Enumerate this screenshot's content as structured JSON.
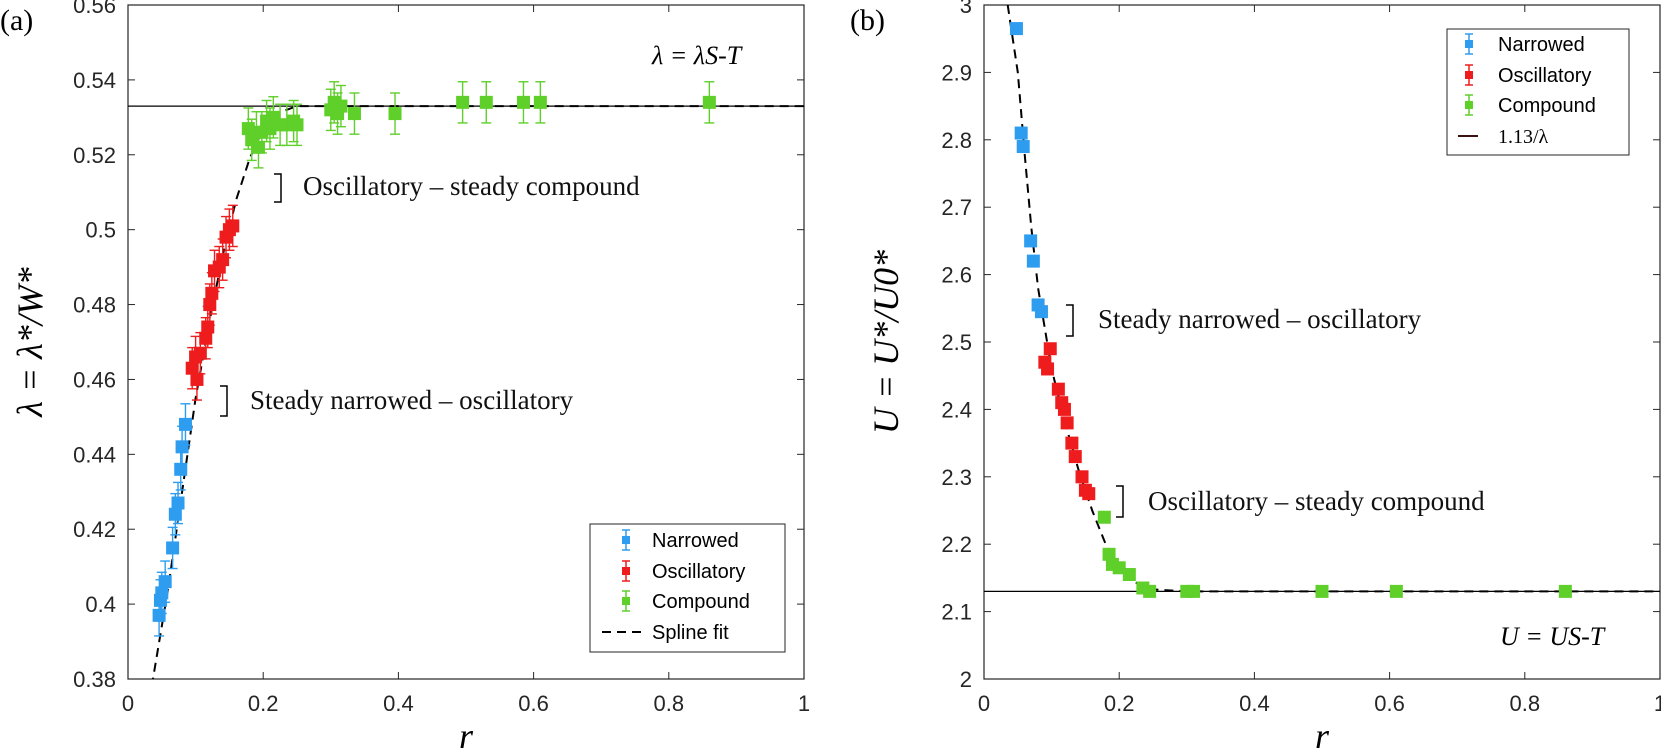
{
  "colors": {
    "narrowed": "#2e9df0",
    "oscillatory": "#ee1c1c",
    "compound": "#5fcf2a",
    "axis": "#262626",
    "ref_line": "#000000"
  },
  "panels": [
    {
      "label": "(a)",
      "ylabel": "λ = λ*/W*",
      "xlabel": "r",
      "ref_label": "λ = λS-T",
      "annotations": [
        "Oscillatory – steady compound",
        "Steady narrowed – oscillatory"
      ],
      "legend": [
        "Narrowed",
        "Oscillatory",
        "Compound",
        "Spline fit"
      ]
    },
    {
      "label": "(b)",
      "ylabel": "U = U*/U0*",
      "xlabel": "r",
      "ref_label": "U = US-T",
      "annotations": [
        "Steady narrowed – oscillatory",
        "Oscillatory – steady compound"
      ],
      "legend": [
        "Narrowed",
        "Oscillatory",
        "Compound",
        "1.13/λ"
      ]
    }
  ],
  "chart_data": [
    {
      "type": "scatter",
      "xlabel": "r",
      "ylabel": "λ = λ*/W*",
      "xlim": [
        0,
        1
      ],
      "ylim": [
        0.38,
        0.56
      ],
      "xticks": [
        "0",
        "0.2",
        "0.4",
        "0.6",
        "0.8",
        "1"
      ],
      "yticks": [
        "0.38",
        "0.4",
        "0.42",
        "0.44",
        "0.46",
        "0.48",
        "0.5",
        "0.52",
        "0.54",
        "0.56"
      ],
      "reference_line": {
        "y": 0.533,
        "label": "λ = λS-T"
      },
      "legend_position": "bottom-right",
      "series": [
        {
          "name": "Narrowed",
          "color": "#2e9df0",
          "points": [
            [
              0.046,
              0.397
            ],
            [
              0.048,
              0.401
            ],
            [
              0.05,
              0.403
            ],
            [
              0.055,
              0.406
            ],
            [
              0.066,
              0.415
            ],
            [
              0.07,
              0.424
            ],
            [
              0.074,
              0.427
            ],
            [
              0.078,
              0.436
            ],
            [
              0.08,
              0.442
            ],
            [
              0.085,
              0.448
            ]
          ]
        },
        {
          "name": "Oscillatory",
          "color": "#ee1c1c",
          "points": [
            [
              0.095,
              0.463
            ],
            [
              0.1,
              0.466
            ],
            [
              0.102,
              0.46
            ],
            [
              0.107,
              0.467
            ],
            [
              0.115,
              0.471
            ],
            [
              0.118,
              0.474
            ],
            [
              0.121,
              0.48
            ],
            [
              0.124,
              0.483
            ],
            [
              0.128,
              0.489
            ],
            [
              0.135,
              0.49
            ],
            [
              0.14,
              0.492
            ],
            [
              0.145,
              0.498
            ],
            [
              0.15,
              0.5
            ],
            [
              0.155,
              0.501
            ]
          ]
        },
        {
          "name": "Compound",
          "color": "#5fcf2a",
          "points": [
            [
              0.178,
              0.527
            ],
            [
              0.183,
              0.524
            ],
            [
              0.19,
              0.526
            ],
            [
              0.193,
              0.522
            ],
            [
              0.198,
              0.526
            ],
            [
              0.205,
              0.529
            ],
            [
              0.21,
              0.527
            ],
            [
              0.215,
              0.53
            ],
            [
              0.225,
              0.528
            ],
            [
              0.235,
              0.528
            ],
            [
              0.245,
              0.529
            ],
            [
              0.25,
              0.528
            ],
            [
              0.3,
              0.532
            ],
            [
              0.305,
              0.534
            ],
            [
              0.31,
              0.531
            ],
            [
              0.315,
              0.533
            ],
            [
              0.335,
              0.531
            ],
            [
              0.395,
              0.531
            ],
            [
              0.495,
              0.534
            ],
            [
              0.53,
              0.534
            ],
            [
              0.585,
              0.534
            ],
            [
              0.61,
              0.534
            ],
            [
              0.86,
              0.534
            ]
          ]
        },
        {
          "name": "Spline fit",
          "style": "dashed",
          "points": [
            [
              0.035,
              0.378
            ],
            [
              0.06,
              0.405
            ],
            [
              0.08,
              0.43
            ],
            [
              0.1,
              0.455
            ],
            [
              0.12,
              0.475
            ],
            [
              0.14,
              0.493
            ],
            [
              0.16,
              0.508
            ],
            [
              0.18,
              0.519
            ],
            [
              0.2,
              0.527
            ],
            [
              0.22,
              0.531
            ],
            [
              0.25,
              0.533
            ],
            [
              0.3,
              0.533
            ],
            [
              0.4,
              0.533
            ],
            [
              0.6,
              0.533
            ],
            [
              1.0,
              0.533
            ]
          ]
        }
      ],
      "annotations": [
        {
          "text": "Oscillatory – steady compound",
          "x": 0.21,
          "y": 0.51
        },
        {
          "text": "Steady narrowed – oscillatory",
          "x": 0.13,
          "y": 0.453
        }
      ]
    },
    {
      "type": "scatter",
      "xlabel": "r",
      "ylabel": "U = U*/U0*",
      "xlim": [
        0,
        1
      ],
      "ylim": [
        2.0,
        3.0
      ],
      "xticks": [
        "0",
        "0.2",
        "0.4",
        "0.6",
        "0.8",
        "1"
      ],
      "yticks": [
        "2",
        "2.1",
        "2.2",
        "2.3",
        "2.4",
        "2.5",
        "2.6",
        "2.7",
        "2.8",
        "2.9",
        "3"
      ],
      "reference_line": {
        "y": 2.13,
        "label": "U = US-T"
      },
      "legend_position": "top-right",
      "series": [
        {
          "name": "Narrowed",
          "color": "#2e9df0",
          "points": [
            [
              0.048,
              2.965
            ],
            [
              0.055,
              2.81
            ],
            [
              0.058,
              2.79
            ],
            [
              0.069,
              2.65
            ],
            [
              0.073,
              2.62
            ],
            [
              0.08,
              2.555
            ],
            [
              0.085,
              2.545
            ]
          ]
        },
        {
          "name": "Oscillatory",
          "color": "#ee1c1c",
          "points": [
            [
              0.09,
              2.47
            ],
            [
              0.094,
              2.46
            ],
            [
              0.098,
              2.49
            ],
            [
              0.11,
              2.43
            ],
            [
              0.115,
              2.41
            ],
            [
              0.119,
              2.4
            ],
            [
              0.123,
              2.38
            ],
            [
              0.13,
              2.35
            ],
            [
              0.135,
              2.33
            ],
            [
              0.145,
              2.3
            ],
            [
              0.15,
              2.28
            ],
            [
              0.155,
              2.275
            ]
          ]
        },
        {
          "name": "Compound",
          "color": "#5fcf2a",
          "points": [
            [
              0.178,
              2.24
            ],
            [
              0.185,
              2.185
            ],
            [
              0.19,
              2.17
            ],
            [
              0.2,
              2.165
            ],
            [
              0.215,
              2.155
            ],
            [
              0.235,
              2.135
            ],
            [
              0.245,
              2.13
            ],
            [
              0.3,
              2.13
            ],
            [
              0.31,
              2.13
            ],
            [
              0.5,
              2.13
            ],
            [
              0.61,
              2.13
            ],
            [
              0.86,
              2.13
            ]
          ]
        },
        {
          "name": "1.13/λ",
          "style": "dashed",
          "points": [
            [
              0.035,
              3.0
            ],
            [
              0.05,
              2.9
            ],
            [
              0.06,
              2.78
            ],
            [
              0.07,
              2.67
            ],
            [
              0.08,
              2.58
            ],
            [
              0.1,
              2.46
            ],
            [
              0.12,
              2.38
            ],
            [
              0.14,
              2.31
            ],
            [
              0.16,
              2.25
            ],
            [
              0.18,
              2.2
            ],
            [
              0.2,
              2.165
            ],
            [
              0.22,
              2.145
            ],
            [
              0.25,
              2.133
            ],
            [
              0.3,
              2.13
            ],
            [
              1.0,
              2.13
            ]
          ]
        }
      ],
      "annotations": [
        {
          "text": "Steady narrowed – oscillatory",
          "x": 0.13,
          "y": 2.53
        },
        {
          "text": "Oscillatory – steady compound",
          "x": 0.21,
          "y": 2.27
        }
      ]
    }
  ]
}
